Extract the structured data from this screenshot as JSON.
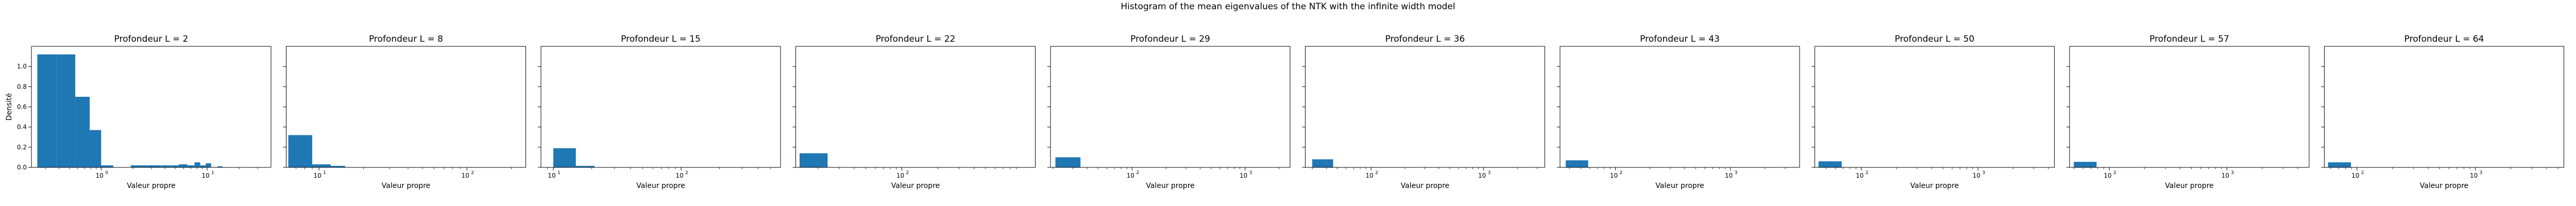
{
  "figure": {
    "suptitle": "Histogram of the mean eigenvalues of the NTK with the infinite width model"
  },
  "chart_data": {
    "type": "bar",
    "subtype": "histogram",
    "x_scale": "log",
    "sharey": true,
    "ylim": [
      0,
      1.2
    ],
    "yticks": [
      0.0,
      0.2,
      0.4,
      0.6,
      0.8,
      1.0
    ],
    "ytick_labels": [
      "0.0",
      "0.2",
      "0.4",
      "0.6",
      "0.8",
      "1.0"
    ],
    "ylabel": "Densité",
    "xlabel": "Valeur propre",
    "bar_color": "#1f77b4",
    "grid": false,
    "panels": [
      {
        "title": "Profondeur L = 2",
        "xlim": [
          0.22,
          40
        ],
        "xticks": [
          {
            "value": 1,
            "label": "10",
            "exp": "0"
          },
          {
            "value": 10,
            "label": "10",
            "exp": "1"
          }
        ],
        "bins": [
          {
            "x0": 0.25,
            "x1": 0.38,
            "density": 1.12
          },
          {
            "x0": 0.38,
            "x1": 0.57,
            "density": 1.12
          },
          {
            "x0": 0.57,
            "x1": 0.78,
            "density": 0.7
          },
          {
            "x0": 0.78,
            "x1": 1.0,
            "density": 0.37
          },
          {
            "x0": 1.0,
            "x1": 1.3,
            "density": 0.02
          },
          {
            "x0": 1.9,
            "x1": 2.4,
            "density": 0.02
          },
          {
            "x0": 2.4,
            "x1": 3.0,
            "density": 0.02
          },
          {
            "x0": 3.0,
            "x1": 3.7,
            "density": 0.02
          },
          {
            "x0": 3.7,
            "x1": 4.5,
            "density": 0.02
          },
          {
            "x0": 4.5,
            "x1": 5.4,
            "density": 0.02
          },
          {
            "x0": 5.4,
            "x1": 6.5,
            "density": 0.03
          },
          {
            "x0": 6.5,
            "x1": 7.6,
            "density": 0.02
          },
          {
            "x0": 7.6,
            "x1": 8.6,
            "density": 0.05
          },
          {
            "x0": 8.6,
            "x1": 9.7,
            "density": 0.02
          },
          {
            "x0": 9.7,
            "x1": 10.9,
            "density": 0.04
          },
          {
            "x0": 12.5,
            "x1": 14.0,
            "density": 0.01
          }
        ]
      },
      {
        "title": "Profondeur L = 8",
        "xlim": [
          6,
          250
        ],
        "xticks": [
          {
            "value": 10,
            "label": "10",
            "exp": "1"
          },
          {
            "value": 100,
            "label": "10",
            "exp": "2"
          }
        ],
        "bins": [
          {
            "x0": 6.2,
            "x1": 9.0,
            "density": 0.32
          },
          {
            "x0": 9.0,
            "x1": 12.0,
            "density": 0.03
          },
          {
            "x0": 12.0,
            "x1": 15.0,
            "density": 0.015
          }
        ]
      },
      {
        "title": "Profondeur L = 15",
        "xlim": [
          8,
          600
        ],
        "xticks": [
          {
            "value": 10,
            "label": "10",
            "exp": "1"
          },
          {
            "value": 100,
            "label": "10",
            "exp": "2"
          }
        ],
        "bins": [
          {
            "x0": 10.0,
            "x1": 15.0,
            "density": 0.19
          },
          {
            "x0": 15.0,
            "x1": 21.0,
            "density": 0.015
          }
        ]
      },
      {
        "title": "Profondeur L = 22",
        "xlim": [
          13,
          1300
        ],
        "xticks": [
          {
            "value": 100,
            "label": "10",
            "exp": "2"
          }
        ],
        "bins": [
          {
            "x0": 14.0,
            "x1": 24.0,
            "density": 0.14
          }
        ]
      },
      {
        "title": "Profondeur L = 29",
        "xlim": [
          19,
          2500
        ],
        "xticks": [
          {
            "value": 100,
            "label": "10",
            "exp": "2"
          },
          {
            "value": 1000,
            "label": "10",
            "exp": "3"
          }
        ],
        "bins": [
          {
            "x0": 21.0,
            "x1": 35.0,
            "density": 0.1
          }
        ]
      },
      {
        "title": "Profondeur L = 36",
        "xlim": [
          26,
          3500
        ],
        "xticks": [
          {
            "value": 100,
            "label": "10",
            "exp": "2"
          },
          {
            "value": 1000,
            "label": "10",
            "exp": "3"
          }
        ],
        "bins": [
          {
            "x0": 30.0,
            "x1": 46.0,
            "density": 0.08
          }
        ]
      },
      {
        "title": "Profondeur L = 43",
        "xlim": [
          33,
          4000
        ],
        "xticks": [
          {
            "value": 100,
            "label": "10",
            "exp": "2"
          },
          {
            "value": 1000,
            "label": "10",
            "exp": "3"
          }
        ],
        "bins": [
          {
            "x0": 37.0,
            "x1": 58.0,
            "density": 0.07
          }
        ]
      },
      {
        "title": "Profondeur L = 50",
        "xlim": [
          40,
          4500
        ],
        "xticks": [
          {
            "value": 100,
            "label": "10",
            "exp": "2"
          },
          {
            "value": 1000,
            "label": "10",
            "exp": "3"
          }
        ],
        "bins": [
          {
            "x0": 43.0,
            "x1": 68.0,
            "density": 0.06
          }
        ]
      },
      {
        "title": "Profondeur L = 57",
        "xlim": [
          46,
          5000
        ],
        "xticks": [
          {
            "value": 100,
            "label": "10",
            "exp": "2"
          },
          {
            "value": 1000,
            "label": "10",
            "exp": "3"
          }
        ],
        "bins": [
          {
            "x0": 50.0,
            "x1": 78.0,
            "density": 0.055
          }
        ]
      },
      {
        "title": "Profondeur L = 64",
        "xlim": [
          53,
          5600
        ],
        "xticks": [
          {
            "value": 100,
            "label": "10",
            "exp": "2"
          },
          {
            "value": 1000,
            "label": "10",
            "exp": "3"
          }
        ],
        "bins": [
          {
            "x0": 57.0,
            "x1": 89.0,
            "density": 0.05
          }
        ]
      }
    ]
  }
}
